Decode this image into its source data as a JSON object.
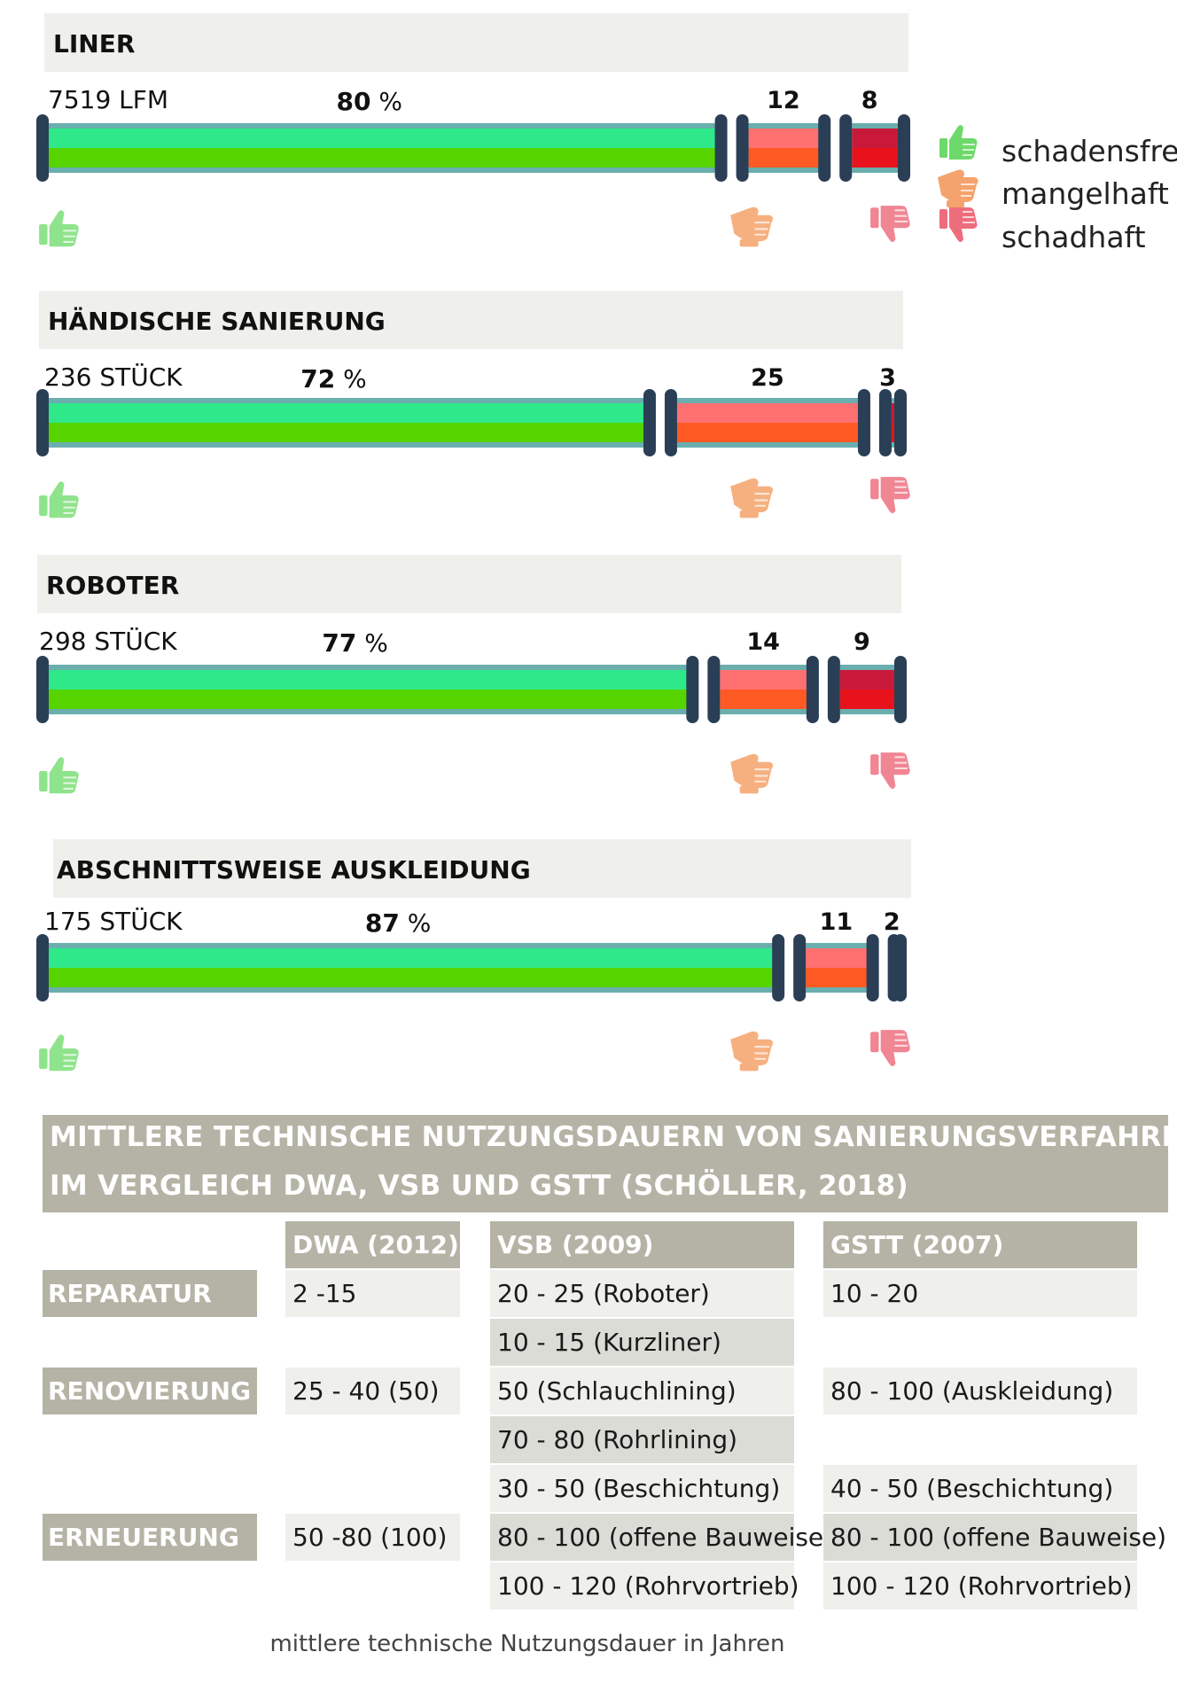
{
  "chart_data": [
    {
      "type": "bar",
      "title": "LINER",
      "count_label": "7519 LFM",
      "values": [
        80,
        12,
        8
      ],
      "value_labels": [
        "80",
        "12",
        "8"
      ],
      "unit": "%"
    },
    {
      "type": "bar",
      "title": "HÄNDISCHE SANIERUNG",
      "count_label": "236 STÜCK",
      "values": [
        72,
        25,
        3
      ],
      "value_labels": [
        "72",
        "25",
        "3"
      ],
      "unit": "%"
    },
    {
      "type": "bar",
      "title": "ROBOTER",
      "count_label": "298 STÜCK",
      "values": [
        77,
        14,
        9
      ],
      "value_labels": [
        "77",
        "14",
        "9"
      ],
      "unit": "%"
    },
    {
      "type": "bar",
      "title": "ABSCHNITTSWEISE AUSKLEIDUNG",
      "count_label": "175 STÜCK",
      "values": [
        87,
        11,
        2
      ],
      "value_labels": [
        "87",
        "11",
        "2"
      ],
      "unit": "%"
    }
  ],
  "legend": [
    {
      "label": "schadensfrei",
      "icon": "thumbs-up-icon",
      "color": "#6dd96a"
    },
    {
      "label": "mangelhaft",
      "icon": "thumbs-sideways-icon",
      "color": "#f4a36c"
    },
    {
      "label": "schadhaft",
      "icon": "thumbs-down-icon",
      "color": "#ee6d7c"
    }
  ],
  "colors": {
    "good_light": "#2ee88a",
    "good_dark": "#55d400",
    "medium_light": "#ff7070",
    "medium_dark": "#ff5a24",
    "bad_light": "#c8193a",
    "bad_dark": "#e8121d",
    "pipe": "#6aaeae",
    "cap": "#2a3f55"
  },
  "table": {
    "title_line1": "MITTLERE TECHNISCHE NUTZUNGSDAUERN  VON SANIERUNGSVERFAHREN",
    "title_line2": "IM VERGLEICH DWA, VSB UND GSTT (SCHÖLLER, 2018)",
    "columns": [
      "DWA (2012)",
      "VSB (2009)",
      "GSTT (2007)"
    ],
    "row_labels": [
      "REPARATUR",
      "RENOVIERUNG",
      "ERNEUERUNG"
    ],
    "dwa": [
      "2 -15",
      "25 - 40 (50)",
      "50 -80 (100)"
    ],
    "vsb": [
      "20 - 25 (Roboter)",
      "10 - 15 (Kurzliner)",
      "50 (Schlauchlining)",
      "70 - 80  (Rohrlining)",
      "30 - 50 (Beschichtung)",
      "80 - 100 (offene Bauweise)",
      "100 - 120 (Rohrvortrieb)"
    ],
    "gstt": [
      "10 - 20",
      "80 - 100 (Auskleidung)",
      "40 - 50 (Beschichtung)",
      "80 - 100 (offene Bauweise)",
      "100 - 120 (Rohrvortrieb)"
    ],
    "caption": "mittlere technische Nutzungsdauer in Jahren"
  }
}
